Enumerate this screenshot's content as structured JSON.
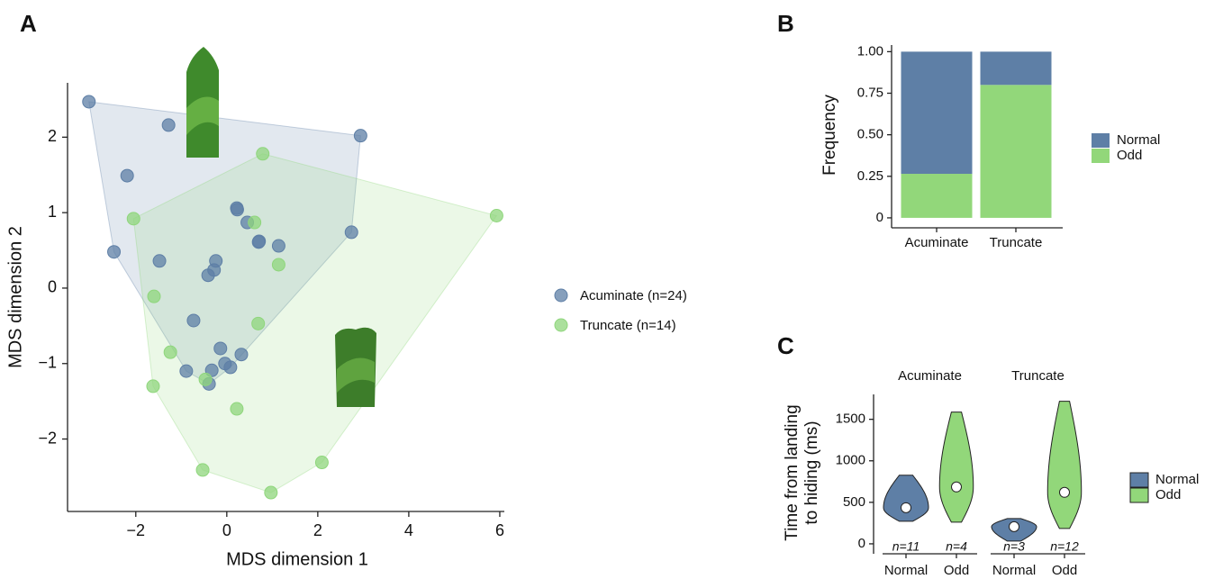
{
  "chart_data": [
    {
      "type": "scatter",
      "panel_label": "A",
      "x_label": "MDS dimension 1",
      "y_label": "MDS dimension 2",
      "xlim": [
        -3.5,
        6.1
      ],
      "ylim": [
        -2.96,
        2.72
      ],
      "xticks": [
        {
          "value": -2,
          "label": "−2"
        },
        0,
        2,
        4,
        6
      ],
      "yticks": [
        {
          "value": -2,
          "label": "−2"
        },
        {
          "value": -1,
          "label": "−1"
        },
        0,
        1,
        2
      ],
      "series": [
        {
          "name": "Acuminate (n=24)",
          "color": "#5e7fa6",
          "x": [
            -3.03,
            -1.28,
            2.94,
            -2.19,
            0.22,
            0.23,
            0.45,
            0.71,
            0.7,
            1.14,
            2.74,
            -2.48,
            -1.48,
            -0.24,
            -0.28,
            -0.41,
            -0.73,
            -0.14,
            0.32,
            -0.04,
            0.08,
            -0.33,
            -0.89,
            -0.39
          ],
          "y": [
            2.47,
            2.16,
            2.02,
            1.49,
            1.06,
            1.04,
            0.87,
            0.62,
            0.61,
            0.56,
            0.74,
            0.48,
            0.36,
            0.36,
            0.24,
            0.17,
            -0.43,
            -0.8,
            -0.88,
            -1.0,
            -1.05,
            -1.09,
            -1.1,
            -1.27
          ]
        },
        {
          "name": "Truncate (n=14)",
          "color": "#8fd67c",
          "x": [
            0.79,
            5.93,
            -2.05,
            0.61,
            1.14,
            -1.6,
            0.69,
            -1.24,
            -0.47,
            -1.62,
            0.22,
            -0.53,
            2.09,
            0.97
          ],
          "y": [
            1.78,
            0.96,
            0.92,
            0.87,
            0.31,
            -0.11,
            -0.47,
            -0.85,
            -1.21,
            -1.3,
            -1.6,
            -2.41,
            -2.31,
            -2.71
          ]
        }
      ]
    },
    {
      "type": "stacked_bar",
      "panel_label": "B",
      "y_label": "Frequency",
      "categories": [
        "Acuminate",
        "Truncate"
      ],
      "ylim": [
        -0.06,
        1.04
      ],
      "yticks": [
        0,
        0.25,
        {
          "value": 0.5,
          "label": "0.50"
        },
        0.75,
        {
          "value": 1,
          "label": "1.00"
        }
      ],
      "series": [
        {
          "name": "Normal",
          "color": "#5e7fa6",
          "values": [
            0.735,
            0.2
          ]
        },
        {
          "name": "Odd",
          "color": "#92d77a",
          "values": [
            0.265,
            0.8
          ]
        }
      ]
    },
    {
      "type": "violin",
      "panel_label": "C",
      "y_label": [
        "Time from landing",
        "to hiding (ms)"
      ],
      "ylim": [
        -120,
        1800
      ],
      "yticks": [
        0,
        500,
        1000,
        1500
      ],
      "series": [
        {
          "name": "Normal",
          "color": "#5e7fa6"
        },
        {
          "name": "Odd",
          "color": "#92d77a"
        }
      ],
      "facets": [
        {
          "title": "Acuminate",
          "categories": [
            "Normal",
            "Odd"
          ],
          "violins": [
            {
              "min": 272,
              "max": 826,
              "mean": 435,
              "n_label": "n=11"
            },
            {
              "min": 261,
              "max": 1587,
              "mean": 685,
              "n_label": "n=4"
            }
          ]
        },
        {
          "title": "Truncate",
          "categories": [
            "Normal",
            "Odd"
          ],
          "violins": [
            {
              "min": 33,
              "max": 304,
              "mean": 207,
              "n_label": "n=3"
            },
            {
              "min": 185,
              "max": 1717,
              "mean": 620,
              "n_label": "n=12"
            }
          ]
        }
      ]
    }
  ]
}
